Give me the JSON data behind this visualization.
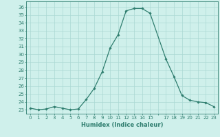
{
  "x": [
    0,
    1,
    2,
    3,
    4,
    5,
    6,
    7,
    8,
    9,
    10,
    11,
    12,
    13,
    14,
    15,
    17,
    18,
    19,
    20,
    21,
    22,
    23
  ],
  "y": [
    23.2,
    23.0,
    23.1,
    23.4,
    23.2,
    23.0,
    23.1,
    24.3,
    25.7,
    27.8,
    30.8,
    32.5,
    35.5,
    35.8,
    35.8,
    35.2,
    29.4,
    27.2,
    24.8,
    24.2,
    24.0,
    23.9,
    23.4
  ],
  "line_color": "#2e7d6e",
  "marker": "D",
  "marker_size": 1.8,
  "background_color": "#cff0eb",
  "grid_color": "#aad9d3",
  "xlabel": "Humidex (Indice chaleur)",
  "ylim": [
    22.5,
    36.7
  ],
  "yticks": [
    23,
    24,
    25,
    26,
    27,
    28,
    29,
    30,
    31,
    32,
    33,
    34,
    35,
    36
  ],
  "xlim": [
    -0.5,
    23.5
  ],
  "axis_color": "#2e7d6e",
  "tick_color": "#2e7d6e",
  "label_color": "#2e7d6e",
  "xlabel_fontsize": 6.0,
  "tick_fontsize": 5.0,
  "linewidth": 0.9
}
